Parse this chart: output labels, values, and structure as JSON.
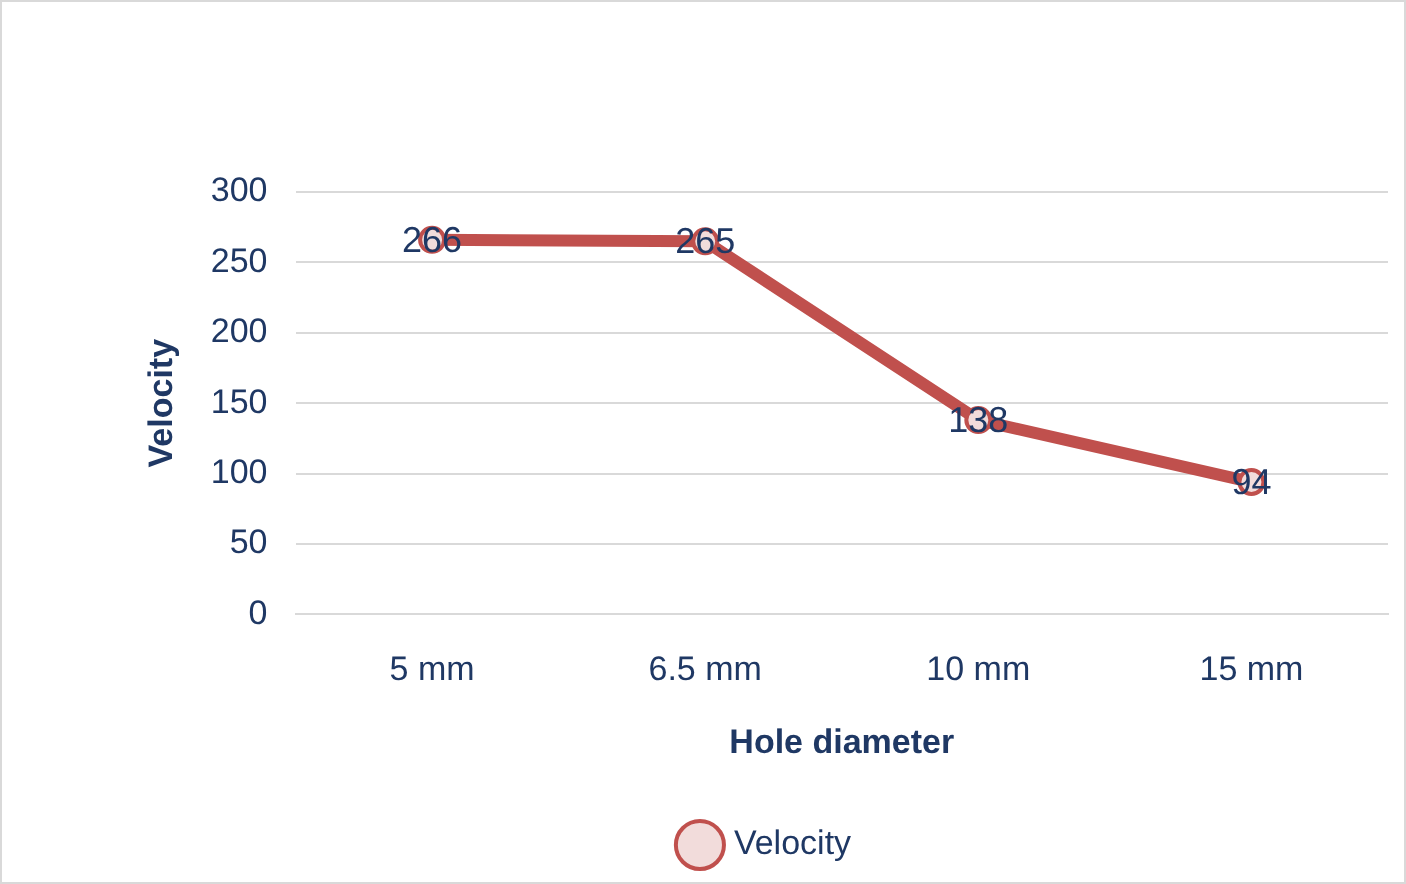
{
  "chart_data": {
    "type": "line",
    "xlabel": "Hole diameter",
    "ylabel": "Velocity",
    "categories": [
      "5 mm",
      "6.5 mm",
      "10 mm",
      "15 mm"
    ],
    "series": [
      {
        "name": "Velocity",
        "color": "#c0504d",
        "values": [
          266,
          265,
          138,
          94
        ]
      }
    ],
    "ylim": [
      0,
      300
    ],
    "yticks": [
      0,
      50,
      100,
      150,
      200,
      250,
      300
    ],
    "grid": "y",
    "legend": "bottom",
    "marker": "circle",
    "line_style": "solid",
    "data_labels": true
  }
}
